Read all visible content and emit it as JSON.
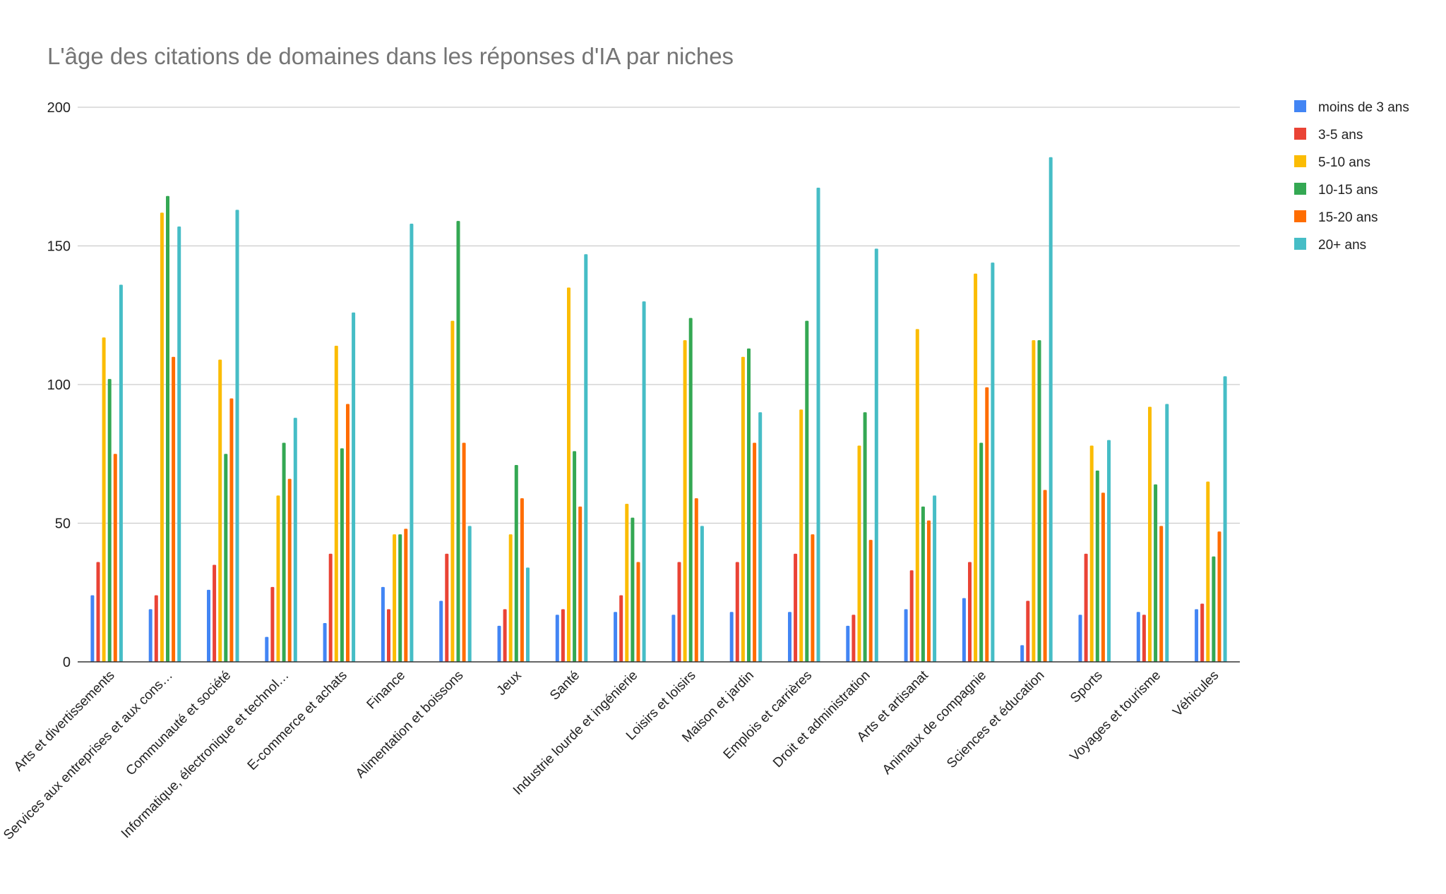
{
  "chart_data": {
    "type": "bar",
    "title": "L'âge des citations de domaines dans les réponses d'IA par niches",
    "xlabel": "",
    "ylabel": "",
    "ylim": [
      0,
      200
    ],
    "yticks": [
      0,
      50,
      100,
      150,
      200
    ],
    "grid": true,
    "legend_position": "right",
    "categories": [
      "Arts et divertissements",
      "Services aux entreprises et aux cons…",
      "Communauté et société",
      "Informatique, électronique et technol…",
      "E-commerce et achats",
      "Finance",
      "Alimentation et boissons",
      "Jeux",
      "Santé",
      "Industrie lourde et ingénierie",
      "Loisirs et loisirs",
      "Maison et jardin",
      "Emplois et carrières",
      "Droit et administration",
      "Arts et artisanat",
      "Animaux de compagnie",
      "Sciences et éducation",
      "Sports",
      "Voyages et tourisme",
      "Véhicules"
    ],
    "series": [
      {
        "name": "moins de 3 ans",
        "color": "#4285f4",
        "values": [
          24,
          19,
          26,
          9,
          14,
          27,
          22,
          13,
          17,
          18,
          17,
          18,
          18,
          13,
          19,
          23,
          6,
          17,
          18,
          19
        ]
      },
      {
        "name": "3-5 ans",
        "color": "#ea4335",
        "values": [
          36,
          24,
          35,
          27,
          39,
          19,
          39,
          19,
          19,
          24,
          36,
          36,
          39,
          17,
          33,
          36,
          22,
          39,
          17,
          21
        ]
      },
      {
        "name": "5-10 ans",
        "color": "#fbbc04",
        "values": [
          117,
          162,
          109,
          60,
          114,
          46,
          123,
          46,
          135,
          57,
          116,
          110,
          91,
          78,
          120,
          140,
          116,
          78,
          92,
          65
        ]
      },
      {
        "name": "10-15 ans",
        "color": "#34a853",
        "values": [
          102,
          168,
          75,
          79,
          77,
          46,
          159,
          71,
          76,
          52,
          124,
          113,
          123,
          90,
          56,
          79,
          116,
          69,
          64,
          38
        ]
      },
      {
        "name": "15-20 ans",
        "color": "#ff6d01",
        "values": [
          75,
          110,
          95,
          66,
          93,
          48,
          79,
          59,
          56,
          36,
          59,
          79,
          46,
          44,
          51,
          99,
          62,
          61,
          49,
          47
        ]
      },
      {
        "name": "20+ ans",
        "color": "#46bdc6",
        "values": [
          136,
          157,
          163,
          88,
          126,
          158,
          49,
          34,
          147,
          130,
          49,
          90,
          171,
          149,
          60,
          144,
          182,
          80,
          93,
          103
        ]
      }
    ]
  }
}
